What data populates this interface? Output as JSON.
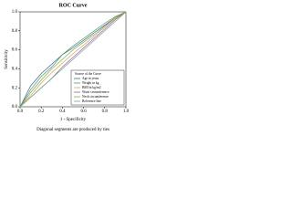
{
  "chart_data": {
    "type": "line",
    "title": "ROC Curve",
    "x_label": "1 - Specificity",
    "y_label": "Sensitivity",
    "footnote": "Diagonal segments are produced by ties",
    "legend_title": "Source of the Curve",
    "x": [
      0,
      0.1,
      0.2,
      0.3,
      0.4,
      0.5,
      0.6,
      0.7,
      0.8,
      0.9,
      1
    ],
    "series": [
      {
        "name": "Age in years",
        "color": "#3a5fcd",
        "values": [
          0,
          0.22,
          0.35,
          0.45,
          0.55,
          0.62,
          0.7,
          0.78,
          0.86,
          0.94,
          1
        ]
      },
      {
        "name": "Weight in kg",
        "color": "#3cb043",
        "values": [
          0,
          0.18,
          0.32,
          0.42,
          0.55,
          0.64,
          0.72,
          0.8,
          0.88,
          0.95,
          1
        ]
      },
      {
        "name": "BMI in kg/m2",
        "color": "#e0a060",
        "values": [
          0,
          0.12,
          0.25,
          0.36,
          0.46,
          0.56,
          0.65,
          0.74,
          0.84,
          0.93,
          1
        ]
      },
      {
        "name": "Waist circumference",
        "color": "#9b59b6",
        "values": [
          0,
          0.1,
          0.2,
          0.3,
          0.42,
          0.52,
          0.62,
          0.72,
          0.82,
          0.92,
          1
        ]
      },
      {
        "name": "Neck circumference",
        "color": "#a0a030",
        "values": [
          0,
          0.15,
          0.28,
          0.4,
          0.5,
          0.6,
          0.68,
          0.76,
          0.85,
          0.94,
          1
        ]
      },
      {
        "name": "Reference line",
        "color": "#66aa88",
        "values": [
          0,
          0.1,
          0.2,
          0.3,
          0.4,
          0.5,
          0.6,
          0.7,
          0.8,
          0.9,
          1
        ]
      }
    ],
    "xlim": [
      0,
      1
    ],
    "ylim": [
      0,
      1
    ],
    "xticks": [
      {
        "value": 0,
        "label": "0.0"
      },
      0.2,
      0.4,
      0.6,
      0.8,
      {
        "value": 1,
        "label": "1.0"
      }
    ],
    "yticks": [
      {
        "value": 0,
        "label": "0.0"
      },
      0.2,
      0.4,
      0.6,
      0.8,
      {
        "value": 1,
        "label": "1.0"
      }
    ],
    "legend": "lower right"
  }
}
